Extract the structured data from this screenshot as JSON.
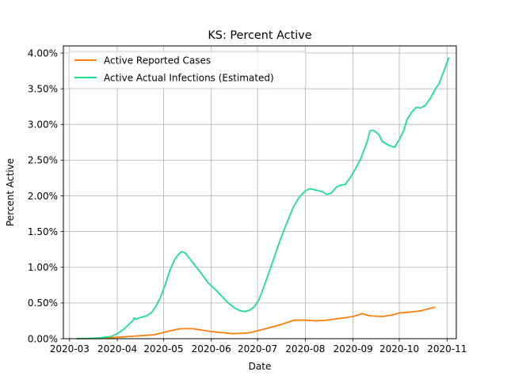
{
  "chart_data": {
    "type": "line",
    "title": "KS: Percent Active",
    "xlabel": "Date",
    "ylabel": "Percent Active",
    "xlim": [
      "2020-02-26",
      "2020-11-07"
    ],
    "ylim": [
      0,
      0.041
    ],
    "grid": true,
    "legend_position": "top-left",
    "x_ticks": [
      {
        "date": "2020-03-01",
        "label": "2020-03"
      },
      {
        "date": "2020-04-01",
        "label": "2020-04"
      },
      {
        "date": "2020-05-01",
        "label": "2020-05"
      },
      {
        "date": "2020-06-01",
        "label": "2020-06"
      },
      {
        "date": "2020-07-01",
        "label": "2020-07"
      },
      {
        "date": "2020-08-01",
        "label": "2020-08"
      },
      {
        "date": "2020-09-01",
        "label": "2020-09"
      },
      {
        "date": "2020-10-01",
        "label": "2020-10"
      },
      {
        "date": "2020-11-01",
        "label": "2020-11"
      }
    ],
    "y_ticks": [
      {
        "value": 0.0,
        "label": "0.00%"
      },
      {
        "value": 0.005,
        "label": "0.50%"
      },
      {
        "value": 0.01,
        "label": "1.00%"
      },
      {
        "value": 0.015,
        "label": "1.50%"
      },
      {
        "value": 0.02,
        "label": "2.00%"
      },
      {
        "value": 0.025,
        "label": "2.50%"
      },
      {
        "value": 0.03,
        "label": "3.00%"
      },
      {
        "value": 0.035,
        "label": "3.50%"
      },
      {
        "value": 0.04,
        "label": "4.00%"
      }
    ],
    "series": [
      {
        "name": "Active Reported Cases",
        "color": "#ff7f0e",
        "points": [
          [
            "2020-03-06",
            0.0
          ],
          [
            "2020-03-20",
            2e-05
          ],
          [
            "2020-04-01",
            0.0002
          ],
          [
            "2020-04-15",
            0.0004
          ],
          [
            "2020-04-25",
            0.00055
          ],
          [
            "2020-05-05",
            0.0011
          ],
          [
            "2020-05-12",
            0.0014
          ],
          [
            "2020-05-20",
            0.0014
          ],
          [
            "2020-06-01",
            0.001
          ],
          [
            "2020-06-15",
            0.0007
          ],
          [
            "2020-06-25",
            0.0008
          ],
          [
            "2020-07-01",
            0.0011
          ],
          [
            "2020-07-15",
            0.0019
          ],
          [
            "2020-07-25",
            0.0026
          ],
          [
            "2020-08-01",
            0.0026
          ],
          [
            "2020-08-08",
            0.0025
          ],
          [
            "2020-08-15",
            0.0026
          ],
          [
            "2020-08-22",
            0.0028
          ],
          [
            "2020-09-01",
            0.0031
          ],
          [
            "2020-09-07",
            0.0035
          ],
          [
            "2020-09-12",
            0.0032
          ],
          [
            "2020-09-20",
            0.0031
          ],
          [
            "2020-09-26",
            0.0033
          ],
          [
            "2020-10-01",
            0.0036
          ],
          [
            "2020-10-07",
            0.0037
          ],
          [
            "2020-10-15",
            0.0039
          ],
          [
            "2020-10-24",
            0.0044
          ]
        ]
      },
      {
        "name": "Active Actual Infections (Estimated)",
        "color": "#1adf8f",
        "points": [
          [
            "2020-03-06",
            0.0
          ],
          [
            "2020-03-20",
            0.0001
          ],
          [
            "2020-03-28",
            0.0003
          ],
          [
            "2020-04-01",
            0.0007
          ],
          [
            "2020-04-05",
            0.0013
          ],
          [
            "2020-04-08",
            0.0019
          ],
          [
            "2020-04-11",
            0.0025
          ],
          [
            "2020-04-12",
            0.0029
          ],
          [
            "2020-04-13",
            0.0027
          ],
          [
            "2020-04-15",
            0.0029
          ],
          [
            "2020-04-20",
            0.0032
          ],
          [
            "2020-04-23",
            0.0036
          ],
          [
            "2020-04-26",
            0.0045
          ],
          [
            "2020-04-29",
            0.0058
          ],
          [
            "2020-05-02",
            0.0075
          ],
          [
            "2020-05-05",
            0.0095
          ],
          [
            "2020-05-08",
            0.011
          ],
          [
            "2020-05-11",
            0.0119
          ],
          [
            "2020-05-13",
            0.0122
          ],
          [
            "2020-05-15",
            0.012
          ],
          [
            "2020-05-18",
            0.0112
          ],
          [
            "2020-05-22",
            0.0101
          ],
          [
            "2020-05-26",
            0.009
          ],
          [
            "2020-05-30",
            0.0078
          ],
          [
            "2020-06-04",
            0.0068
          ],
          [
            "2020-06-08",
            0.0059
          ],
          [
            "2020-06-12",
            0.005
          ],
          [
            "2020-06-16",
            0.0043
          ],
          [
            "2020-06-20",
            0.0039
          ],
          [
            "2020-06-23",
            0.0038
          ],
          [
            "2020-06-26",
            0.004
          ],
          [
            "2020-06-29",
            0.0045
          ],
          [
            "2020-07-02",
            0.0055
          ],
          [
            "2020-07-05",
            0.0072
          ],
          [
            "2020-07-08",
            0.009
          ],
          [
            "2020-07-12",
            0.0115
          ],
          [
            "2020-07-16",
            0.014
          ],
          [
            "2020-07-20",
            0.0162
          ],
          [
            "2020-07-24",
            0.0183
          ],
          [
            "2020-07-28",
            0.0198
          ],
          [
            "2020-08-01",
            0.0207
          ],
          [
            "2020-08-04",
            0.021
          ],
          [
            "2020-08-08",
            0.0208
          ],
          [
            "2020-08-12",
            0.0206
          ],
          [
            "2020-08-15",
            0.0202
          ],
          [
            "2020-08-18",
            0.0204
          ],
          [
            "2020-08-21",
            0.0212
          ],
          [
            "2020-08-24",
            0.0215
          ],
          [
            "2020-08-27",
            0.0216
          ],
          [
            "2020-08-30",
            0.0225
          ],
          [
            "2020-09-02",
            0.0236
          ],
          [
            "2020-09-06",
            0.0252
          ],
          [
            "2020-09-10",
            0.0275
          ],
          [
            "2020-09-12",
            0.0291
          ],
          [
            "2020-09-14",
            0.0292
          ],
          [
            "2020-09-16",
            0.0289
          ],
          [
            "2020-09-18",
            0.0285
          ],
          [
            "2020-09-20",
            0.0276
          ],
          [
            "2020-09-24",
            0.0271
          ],
          [
            "2020-09-28",
            0.0268
          ],
          [
            "2020-10-01",
            0.0279
          ],
          [
            "2020-10-04",
            0.0292
          ],
          [
            "2020-10-06",
            0.0307
          ],
          [
            "2020-10-09",
            0.0317
          ],
          [
            "2020-10-12",
            0.0324
          ],
          [
            "2020-10-15",
            0.0323
          ],
          [
            "2020-10-18",
            0.0327
          ],
          [
            "2020-10-21",
            0.0336
          ],
          [
            "2020-10-24",
            0.0348
          ],
          [
            "2020-10-27",
            0.0358
          ],
          [
            "2020-10-30",
            0.0375
          ],
          [
            "2020-11-02",
            0.0393
          ]
        ]
      }
    ]
  }
}
